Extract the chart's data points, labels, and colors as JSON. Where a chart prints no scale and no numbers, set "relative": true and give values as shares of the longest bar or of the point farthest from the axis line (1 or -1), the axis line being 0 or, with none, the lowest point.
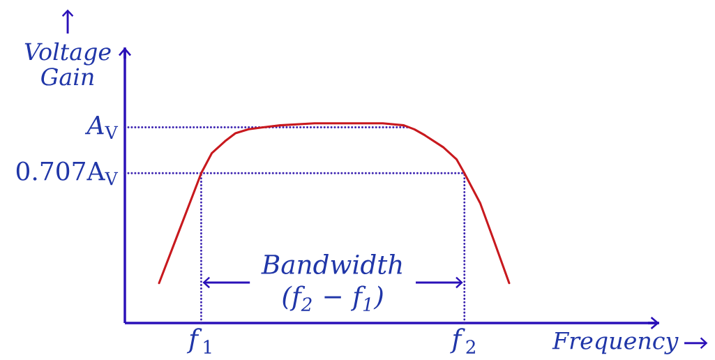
{
  "chart_data": {
    "type": "line",
    "relative": true,
    "xlabel": "Frequency",
    "ylabel": "Voltage Gain",
    "x": [
      0.84,
      1.0,
      1.02,
      1.04,
      1.09,
      1.13,
      1.18,
      1.235,
      1.3,
      1.43,
      1.56,
      1.69,
      1.77,
      1.81,
      1.85,
      1.92,
      1.97,
      2.0,
      2.06,
      2.11,
      2.17
    ],
    "series": [
      {
        "color": "#c8191e",
        "values": [
          0.2,
          0.75,
          0.8,
          0.85,
          0.91,
          0.95,
          0.97,
          0.98,
          0.99,
          1.0,
          1.0,
          1.0,
          0.99,
          0.97,
          0.94,
          0.88,
          0.82,
          0.75,
          0.6,
          0.42,
          0.2
        ]
      }
    ],
    "xlim": [
      0.71,
      2.74
    ],
    "xticks": [
      {
        "value": 1,
        "label": "*f*$_{1}$"
      },
      {
        "value": 2,
        "label": "*f*$_{2}$"
      }
    ],
    "ref_lines": [
      {
        "axis": "y",
        "value": 0.98,
        "label": "*A*$_{V}$",
        "color": "#3a22b0",
        "line_style": "dotted"
      },
      {
        "axis": "y",
        "value": 0.75,
        "label": "0.707A$_{V}$",
        "color": "#3a22b0",
        "line_style": "dotted"
      },
      {
        "axis": "x",
        "value": 1,
        "color": "#3a22b0",
        "line_style": "dotted"
      },
      {
        "axis": "x",
        "value": 2,
        "color": "#3a22b0",
        "line_style": "dotted"
      }
    ],
    "annotations": [
      "Bandwidth (f$_{2}$ − f$_{1}$)"
    ]
  }
}
